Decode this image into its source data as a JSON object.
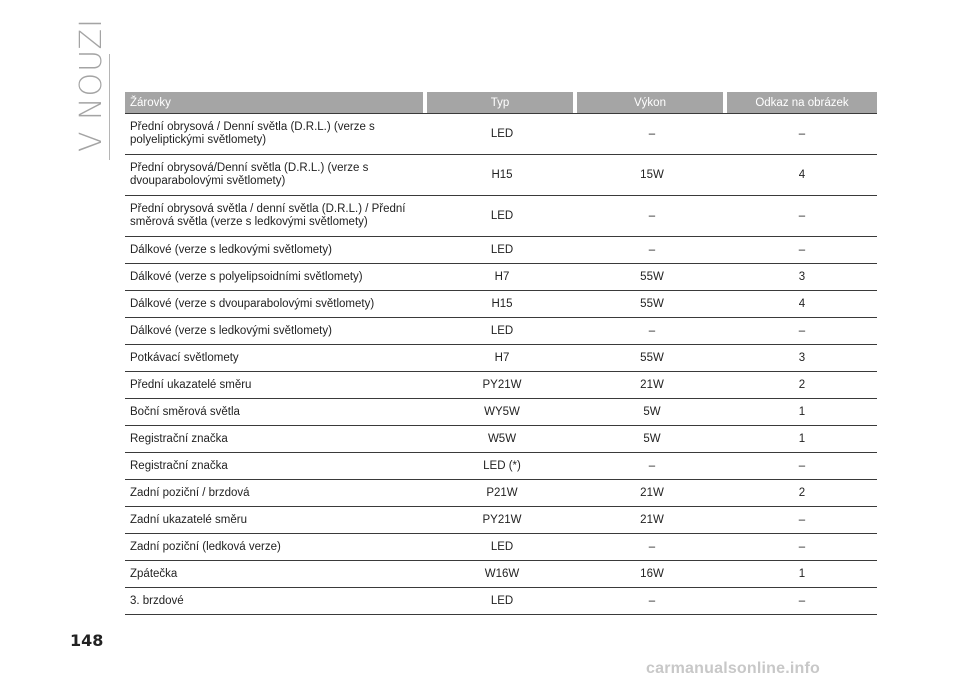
{
  "section_title": "V NOUZI",
  "page_number": "148",
  "watermark": "carmanualsonline.info",
  "table": {
    "headers": {
      "name": "Žárovky",
      "typ": "Typ",
      "vykon": "Výkon",
      "odkaz": "Odkaz na obrázek"
    },
    "rows": [
      {
        "name": "Přední obrysová / Denní světla (D.R.L.) (verze s polyeliptickými světlomety)",
        "typ": "LED",
        "vykon": "–",
        "odkaz": "–"
      },
      {
        "name": "Přední obrysová/Denní světla (D.R.L.) (verze s dvouparabolovými světlomety)",
        "typ": "H15",
        "vykon": "15W",
        "odkaz": "4"
      },
      {
        "name": "Přední obrysová světla / denní světla (D.R.L.) / Přední směrová světla (verze s ledkovými světlomety)",
        "typ": "LED",
        "vykon": "–",
        "odkaz": "–"
      },
      {
        "name": "Dálkové (verze s ledkovými světlomety)",
        "typ": "LED",
        "vykon": "–",
        "odkaz": "–"
      },
      {
        "name": "Dálkové (verze s polyelipsoidními světlomety)",
        "typ": "H7",
        "vykon": "55W",
        "odkaz": "3"
      },
      {
        "name": "Dálkové (verze s dvouparabolovými světlomety)",
        "typ": "H15",
        "vykon": "55W",
        "odkaz": "4"
      },
      {
        "name": "Dálkové (verze s ledkovými světlomety)",
        "typ": "LED",
        "vykon": "–",
        "odkaz": "–"
      },
      {
        "name": "Potkávací světlomety",
        "typ": "H7",
        "vykon": "55W",
        "odkaz": "3"
      },
      {
        "name": "Přední ukazatelé směru",
        "typ": "PY21W",
        "vykon": "21W",
        "odkaz": "2"
      },
      {
        "name": "Boční směrová světla",
        "typ": "WY5W",
        "vykon": "5W",
        "odkaz": "1"
      },
      {
        "name": "Registrační značka",
        "typ": "W5W",
        "vykon": "5W",
        "odkaz": "1"
      },
      {
        "name": "Registrační značka",
        "typ": "LED (*)",
        "vykon": "–",
        "odkaz": "–"
      },
      {
        "name": "Zadní poziční / brzdová",
        "typ": "P21W",
        "vykon": "21W",
        "odkaz": "2"
      },
      {
        "name": "Zadní ukazatelé směru",
        "typ": "PY21W",
        "vykon": "21W",
        "odkaz": "–"
      },
      {
        "name": "Zadní poziční (ledková verze)",
        "typ": "LED",
        "vykon": "–",
        "odkaz": "–"
      },
      {
        "name": "Zpátečka",
        "typ": "W16W",
        "vykon": "16W",
        "odkaz": "1"
      },
      {
        "name": "3. brzdové",
        "typ": "LED",
        "vykon": "–",
        "odkaz": "–"
      }
    ]
  }
}
